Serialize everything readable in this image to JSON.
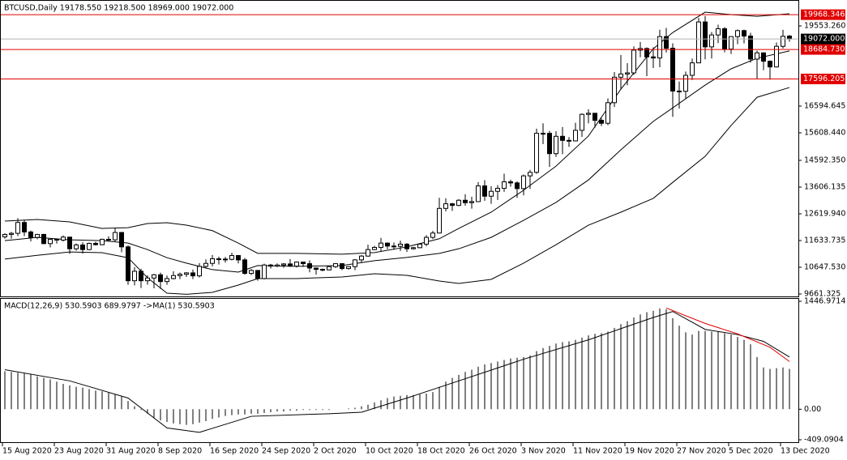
{
  "chart_data": [
    {
      "type": "candlestick",
      "title": "BTCUSD,Daily  19178.550 19218.500 18969.000 19072.000",
      "categories": [
        "15 Aug 2020",
        null,
        null,
        null,
        null,
        null,
        null,
        null,
        "23 Aug 2020",
        null,
        null,
        null,
        null,
        null,
        null,
        null,
        "31 Aug 2020",
        null,
        null,
        null,
        null,
        null,
        null,
        null,
        "8 Sep 2020",
        null,
        null,
        null,
        null,
        null,
        null,
        null,
        "16 Sep 2020",
        null,
        null,
        null,
        null,
        null,
        null,
        null,
        "24 Sep 2020",
        null,
        null,
        null,
        null,
        null,
        null,
        null,
        "2 Oct 2020",
        null,
        null,
        null,
        null,
        null,
        null,
        null,
        "10 Oct 2020",
        null,
        null,
        null,
        null,
        null,
        null,
        null,
        "18 Oct 2020",
        null,
        null,
        null,
        null,
        null,
        null,
        null,
        "26 Oct 2020",
        null,
        null,
        null,
        null,
        null,
        null,
        null,
        "3 Nov 2020",
        null,
        null,
        null,
        null,
        null,
        null,
        null,
        "11 Nov 2020",
        null,
        null,
        null,
        null,
        null,
        null,
        null,
        "19 Nov 2020",
        null,
        null,
        null,
        null,
        null,
        null,
        null,
        "27 Nov 2020",
        null,
        null,
        null,
        null,
        null,
        null,
        null,
        "5 Dec 2020",
        null,
        null,
        null,
        null,
        null,
        null,
        null,
        "13 Dec 2020",
        null
      ],
      "candles": [
        [
          11770,
          11900,
          11700,
          11860
        ],
        [
          11860,
          11950,
          11700,
          11900
        ],
        [
          11900,
          12460,
          11800,
          12300
        ],
        [
          12300,
          12400,
          11800,
          11950
        ],
        [
          11950,
          12000,
          11600,
          11750
        ],
        [
          11750,
          11880,
          11680,
          11860
        ],
        [
          11860,
          11880,
          11500,
          11520
        ],
        [
          11520,
          11690,
          11380,
          11680
        ],
        [
          11680,
          11710,
          11520,
          11650
        ],
        [
          11650,
          11820,
          11600,
          11760
        ],
        [
          11760,
          11770,
          11140,
          11330
        ],
        [
          11330,
          11530,
          11260,
          11470
        ],
        [
          11470,
          11570,
          11150,
          11300
        ],
        [
          11300,
          11560,
          11280,
          11530
        ],
        [
          11530,
          11590,
          11450,
          11480
        ],
        [
          11480,
          11700,
          11460,
          11680
        ],
        [
          11680,
          11790,
          11600,
          11660
        ],
        [
          11660,
          12090,
          11600,
          11930
        ],
        [
          11930,
          11950,
          11200,
          11400
        ],
        [
          11400,
          11460,
          10000,
          10150
        ],
        [
          10150,
          10650,
          9980,
          10500
        ],
        [
          10500,
          10590,
          9880,
          10150
        ],
        [
          10150,
          10350,
          10000,
          10250
        ],
        [
          10250,
          10400,
          9870,
          10370
        ],
        [
          10370,
          10450,
          9850,
          10120
        ],
        [
          10120,
          10340,
          10000,
          10230
        ],
        [
          10230,
          10500,
          10200,
          10340
        ],
        [
          10340,
          10450,
          10210,
          10390
        ],
        [
          10390,
          10470,
          10290,
          10440
        ],
        [
          10440,
          10560,
          10210,
          10330
        ],
        [
          10330,
          10800,
          10270,
          10680
        ],
        [
          10680,
          10940,
          10620,
          10790
        ],
        [
          10790,
          11100,
          10680,
          10960
        ],
        [
          10960,
          11040,
          10750,
          10950
        ],
        [
          10950,
          11030,
          10820,
          10940
        ],
        [
          10940,
          11180,
          10900,
          11080
        ],
        [
          11080,
          11100,
          10790,
          10920
        ],
        [
          10920,
          10990,
          10380,
          10420
        ],
        [
          10420,
          10580,
          10360,
          10530
        ],
        [
          10530,
          10540,
          10150,
          10230
        ],
        [
          10230,
          10780,
          10200,
          10730
        ],
        [
          10730,
          10770,
          10600,
          10690
        ],
        [
          10690,
          10790,
          10650,
          10730
        ],
        [
          10730,
          10800,
          10630,
          10770
        ],
        [
          10770,
          10950,
          10660,
          10690
        ],
        [
          10690,
          10860,
          10640,
          10840
        ],
        [
          10840,
          10850,
          10660,
          10780
        ],
        [
          10780,
          10900,
          10460,
          10620
        ],
        [
          10620,
          10640,
          10380,
          10570
        ],
        [
          10570,
          10600,
          10500,
          10550
        ],
        [
          10550,
          10700,
          10530,
          10670
        ],
        [
          10670,
          10800,
          10620,
          10780
        ],
        [
          10780,
          10800,
          10540,
          10600
        ],
        [
          10600,
          10690,
          10560,
          10670
        ],
        [
          10670,
          10950,
          10540,
          10920
        ],
        [
          10920,
          11100,
          10830,
          11060
        ],
        [
          11060,
          11480,
          11040,
          11300
        ],
        [
          11300,
          11440,
          11280,
          11380
        ],
        [
          11380,
          11730,
          11220,
          11540
        ],
        [
          11540,
          11560,
          11310,
          11430
        ],
        [
          11430,
          11560,
          11290,
          11420
        ],
        [
          11420,
          11630,
          11250,
          11500
        ],
        [
          11500,
          11540,
          11210,
          11330
        ],
        [
          11330,
          11400,
          11300,
          11370
        ],
        [
          11370,
          11500,
          11350,
          11500
        ],
        [
          11500,
          11830,
          11420,
          11750
        ],
        [
          11750,
          11990,
          11690,
          11910
        ],
        [
          11910,
          13210,
          11900,
          12820
        ],
        [
          12820,
          13190,
          12710,
          12990
        ],
        [
          12990,
          13020,
          12730,
          12930
        ],
        [
          12930,
          13160,
          12900,
          13120
        ],
        [
          13120,
          13340,
          12920,
          13030
        ],
        [
          13030,
          13250,
          12810,
          13070
        ],
        [
          13070,
          13790,
          13060,
          13650
        ],
        [
          13650,
          13860,
          13100,
          13270
        ],
        [
          13270,
          13640,
          12990,
          13450
        ],
        [
          13450,
          13680,
          13130,
          13560
        ],
        [
          13560,
          14100,
          13430,
          13800
        ],
        [
          13800,
          13880,
          13620,
          13760
        ],
        [
          13760,
          13820,
          13210,
          13550
        ],
        [
          13550,
          14070,
          13300,
          14020
        ],
        [
          14020,
          14240,
          13540,
          14150
        ],
        [
          14150,
          15760,
          14100,
          15590
        ],
        [
          15590,
          15960,
          15190,
          15590
        ],
        [
          15590,
          15680,
          14350,
          14840
        ],
        [
          14840,
          15670,
          14720,
          15480
        ],
        [
          15480,
          15820,
          14820,
          15330
        ],
        [
          15330,
          15450,
          15090,
          15310
        ],
        [
          15310,
          15980,
          15290,
          15700
        ],
        [
          15700,
          16330,
          15460,
          16290
        ],
        [
          16290,
          16480,
          15960,
          16330
        ],
        [
          16330,
          16330,
          15800,
          16070
        ],
        [
          16070,
          16150,
          15860,
          15960
        ],
        [
          15960,
          16880,
          15890,
          16720
        ],
        [
          16720,
          17850,
          16560,
          17660
        ],
        [
          17660,
          18480,
          17230,
          17780
        ],
        [
          17780,
          18180,
          17360,
          17820
        ],
        [
          17820,
          18800,
          17750,
          18660
        ],
        [
          18660,
          18960,
          18400,
          18720
        ],
        [
          18720,
          18760,
          17700,
          18410
        ],
        [
          18410,
          18760,
          18000,
          18370
        ],
        [
          18370,
          19410,
          18030,
          19160
        ],
        [
          19160,
          19480,
          18570,
          18730
        ],
        [
          18730,
          18910,
          16200,
          17150
        ],
        [
          17150,
          17500,
          16500,
          17140
        ],
        [
          17140,
          17870,
          16870,
          17730
        ],
        [
          17730,
          18350,
          17560,
          18190
        ],
        [
          18190,
          19850,
          18180,
          19700
        ],
        [
          19700,
          19920,
          18320,
          18780
        ],
        [
          18780,
          19330,
          18350,
          19220
        ],
        [
          19220,
          19600,
          18920,
          19450
        ],
        [
          19450,
          19510,
          18580,
          18700
        ],
        [
          18700,
          19170,
          18520,
          19160
        ],
        [
          19160,
          19420,
          18880,
          19380
        ],
        [
          19380,
          19420,
          18910,
          19180
        ],
        [
          19180,
          19300,
          18200,
          18330
        ],
        [
          18330,
          18640,
          17610,
          18560
        ],
        [
          18560,
          18570,
          17920,
          18250
        ],
        [
          18250,
          18280,
          17570,
          18040
        ],
        [
          18040,
          18940,
          18020,
          18800
        ],
        [
          18800,
          19410,
          18720,
          19170
        ],
        [
          19178.55,
          19218.5,
          18969,
          19072
        ]
      ],
      "series": [
        {
          "color": "#000000",
          "x": [
            0,
            5,
            10,
            15,
            19,
            22,
            25,
            28,
            32,
            36,
            39,
            45,
            52,
            57,
            62,
            67,
            70,
            75,
            80,
            85,
            90,
            95,
            100,
            103,
            108,
            112,
            116,
            121
          ],
          "values": [
            12350,
            12410,
            12320,
            12080,
            12110,
            12260,
            12290,
            12200,
            12000,
            11540,
            11160,
            11160,
            11130,
            11190,
            11400,
            11700,
            12080,
            12680,
            13490,
            14380,
            15490,
            17220,
            18710,
            19310,
            20060,
            19970,
            19910,
            20000
          ]
        },
        {
          "color": "#000000",
          "x": [
            0,
            5,
            10,
            15,
            19,
            22,
            25,
            28,
            32,
            36,
            39,
            45,
            52,
            57,
            62,
            67,
            70,
            75,
            80,
            85,
            90,
            95,
            100,
            103,
            108,
            112,
            116,
            121
          ],
          "values": [
            11630,
            11750,
            11660,
            11630,
            11540,
            11300,
            11000,
            10800,
            10560,
            10470,
            10710,
            10680,
            10710,
            10890,
            11010,
            11160,
            11330,
            11750,
            12380,
            13040,
            13870,
            14980,
            16030,
            16530,
            17370,
            17970,
            18360,
            18630
          ]
        },
        {
          "color": "#000000",
          "x": [
            0,
            5,
            10,
            15,
            19,
            22,
            25,
            28,
            32,
            36,
            39,
            45,
            52,
            57,
            62,
            67,
            70,
            75,
            80,
            85,
            90,
            95,
            100,
            103,
            108,
            112,
            116,
            121
          ],
          "values": [
            10950,
            11090,
            11210,
            11185,
            11000,
            10260,
            9690,
            9650,
            9720,
            9990,
            10230,
            10230,
            10290,
            10410,
            10350,
            10140,
            10050,
            10200,
            10800,
            11480,
            12200,
            12680,
            13190,
            13780,
            14740,
            15880,
            16920,
            17280
          ]
        }
      ],
      "levels": [
        19968.346,
        {
          "value": 18684.73,
          "label": "18684.730"
        },
        17596.205
      ],
      "level_color": "#e00000",
      "bid": {
        "value": 19072,
        "label": "19072.000"
      },
      "ylim": [
        9571.7,
        20420
      ],
      "yticks": [
        9661.325,
        {
          "value": 10647.53,
          "label": "10647.530"
        },
        11633.735,
        {
          "value": 12619.94,
          "label": "12619.940"
        },
        13606.135,
        {
          "value": 14592.35,
          "label": "14592.350"
        },
        {
          "value": 15608.44,
          "label": "15608.440"
        },
        16594.645,
        {
          "value": 19553.26,
          "label": "19553.260"
        }
      ]
    },
    {
      "type": "macd",
      "title": "MACD(12,26,9) 530.5903 689.9797 ->MA(1) 530.5903",
      "color": "#000000",
      "values": [
        510,
        500,
        490,
        480,
        470,
        440,
        420,
        400,
        370,
        340,
        320,
        300,
        290,
        270,
        250,
        240,
        220,
        200,
        170,
        110,
        40,
        -10,
        -60,
        -110,
        -150,
        -170,
        -190,
        -200,
        -210,
        -200,
        -180,
        -160,
        -130,
        -110,
        -90,
        -80,
        -70,
        -70,
        -60,
        -60,
        -50,
        -40,
        -30,
        -30,
        -20,
        -20,
        -10,
        -10,
        -10,
        -10,
        -10,
        0,
        0,
        10,
        20,
        40,
        60,
        90,
        120,
        150,
        170,
        180,
        190,
        190,
        200,
        210,
        230,
        300,
        370,
        420,
        460,
        500,
        530,
        570,
        600,
        620,
        640,
        660,
        680,
        690,
        700,
        720,
        780,
        820,
        850,
        880,
        900,
        910,
        930,
        960,
        990,
        1010,
        1020,
        1040,
        1090,
        1140,
        1180,
        1230,
        1270,
        1300,
        1320,
        1350,
        1340,
        1220,
        1120,
        1030,
        1000,
        1050,
        1050,
        1040,
        1040,
        1020,
        1000,
        970,
        930,
        870,
        700,
        560,
        540,
        550,
        560,
        540
      ],
      "series": [
        {
          "color": "#000000",
          "x": [
            0,
            10,
            19,
            25,
            30,
            38,
            50,
            55,
            62,
            70,
            80,
            90,
            100,
            103,
            108,
            113,
            117,
            121
          ],
          "values": [
            530,
            380,
            150,
            -250,
            -310,
            -95,
            -60,
            -40,
            150,
            380,
            670,
            930,
            1230,
            1310,
            1070,
            1000,
            910,
            700
          ]
        },
        {
          "color": "#e00000",
          "x": [
            102,
            108,
            113,
            118,
            121
          ],
          "values": [
            1357,
            1150,
            1010,
            830,
            640
          ]
        }
      ],
      "ylim": [
        -409.0904,
        1446.9714
      ],
      "yticks": [
        1446.9714,
        {
          "value": 0,
          "label": "0.00"
        },
        -409.0904
      ]
    }
  ]
}
